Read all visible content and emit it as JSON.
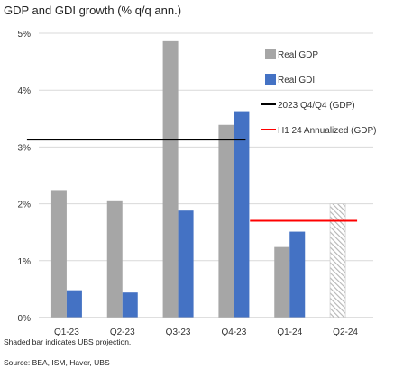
{
  "chart_data": {
    "type": "bar",
    "title": "GDP and GDI growth (% q/q ann.)",
    "categories": [
      "Q1-23",
      "Q2-23",
      "Q3-23",
      "Q4-23",
      "Q1-24",
      "Q2-24"
    ],
    "series": [
      {
        "name": "Real GDP",
        "color": "#a6a6a6",
        "values": [
          2.24,
          2.06,
          4.86,
          3.39,
          1.24,
          2.0
        ]
      },
      {
        "name": "Real GDI",
        "color": "#4472c4",
        "values": [
          0.48,
          0.44,
          1.88,
          3.63,
          1.51,
          null
        ]
      }
    ],
    "projected": {
      "category": "Q2-24",
      "series": "Real GDP",
      "style": "hatched"
    },
    "reference_lines": [
      {
        "name": "2023 Q4/Q4 (GDP)",
        "color": "#000000",
        "value": 3.13,
        "from": "Q1-23",
        "to": "Q4-23"
      },
      {
        "name": "H1 24 Annualized (GDP)",
        "color": "#ff0000",
        "value": 1.7,
        "from": "Q1-24",
        "to": "Q2-24"
      }
    ],
    "yticks": [
      "0%",
      "1%",
      "2%",
      "3%",
      "4%",
      "5%"
    ],
    "ylim": [
      0,
      5
    ],
    "grid": true,
    "legend_position": "right",
    "xlabel": "",
    "ylabel": ""
  },
  "footnote": "Shaded bar indicates UBS projection.",
  "source": "Source: BEA, ISM, Haver, UBS"
}
